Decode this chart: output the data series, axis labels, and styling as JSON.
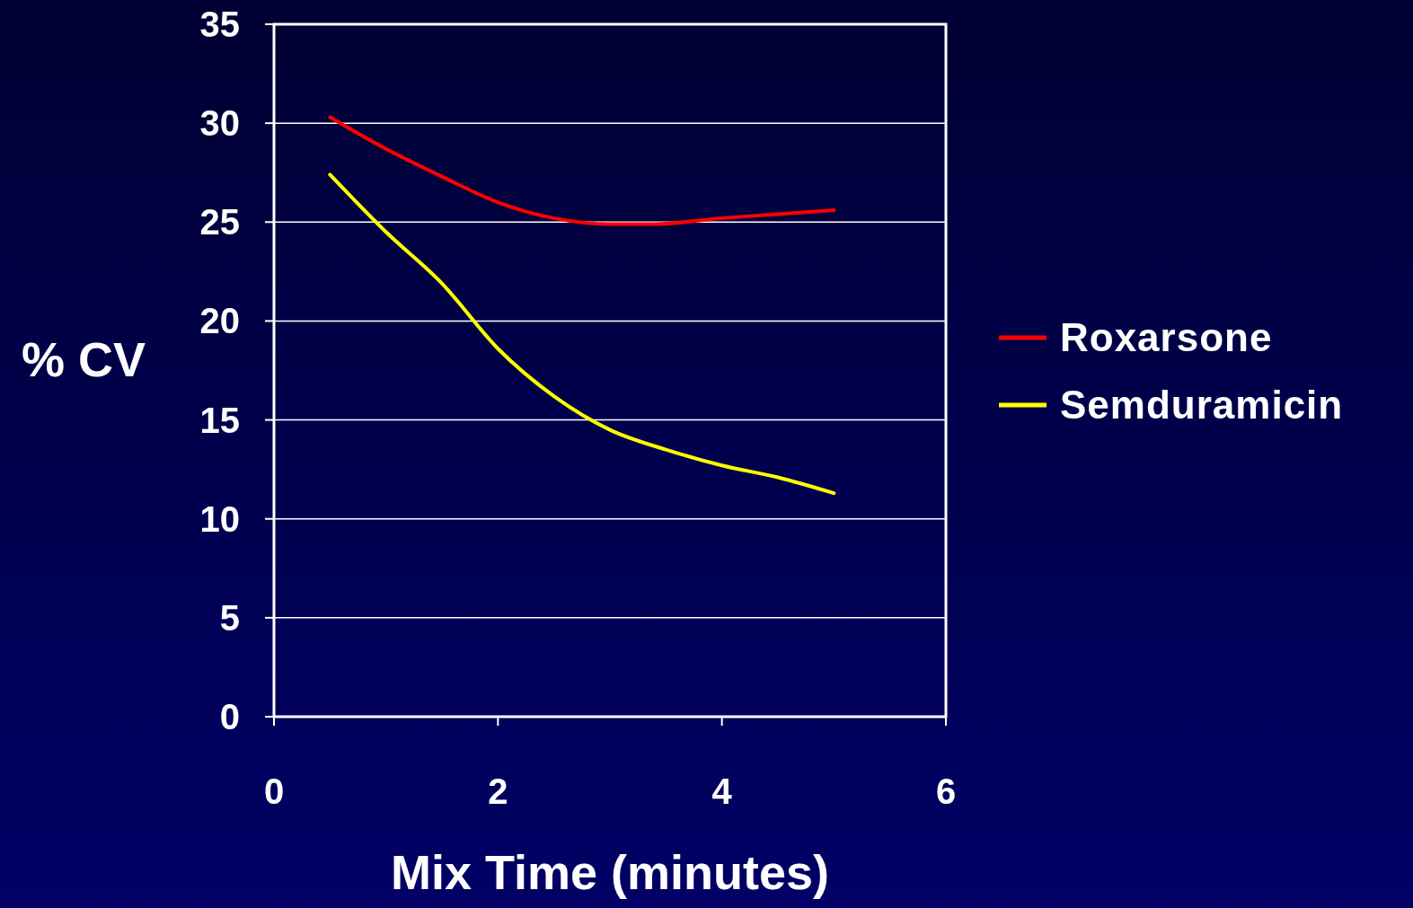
{
  "chart_data": {
    "type": "line",
    "xlabel": "Mix Time (minutes)",
    "ylabel": "% CV",
    "xlim": [
      0,
      6
    ],
    "xticks": [
      0,
      2,
      4,
      6
    ],
    "ylim": [
      0,
      35
    ],
    "yticks": [
      0,
      5,
      10,
      15,
      20,
      25,
      30,
      35
    ],
    "grid": "y",
    "legend": "right",
    "line_style": "solid",
    "marker": "none",
    "series": [
      {
        "name": "Roxarsone",
        "color": "#ff0000",
        "x": [
          0.5,
          1,
          1.5,
          2,
          2.5,
          3,
          3.4,
          4,
          4.5,
          5
        ],
        "values": [
          30.3,
          28.7,
          27.3,
          26.0,
          25.2,
          24.9,
          24.9,
          25.2,
          25.4,
          25.6
        ]
      },
      {
        "name": "Semduramicin",
        "color": "#ffff00",
        "x": [
          0.5,
          1,
          1.5,
          2,
          2.5,
          3,
          3.5,
          4,
          4.5,
          5
        ],
        "values": [
          27.4,
          24.5,
          21.9,
          18.6,
          16.2,
          14.5,
          13.5,
          12.7,
          12.1,
          11.3
        ]
      }
    ]
  }
}
